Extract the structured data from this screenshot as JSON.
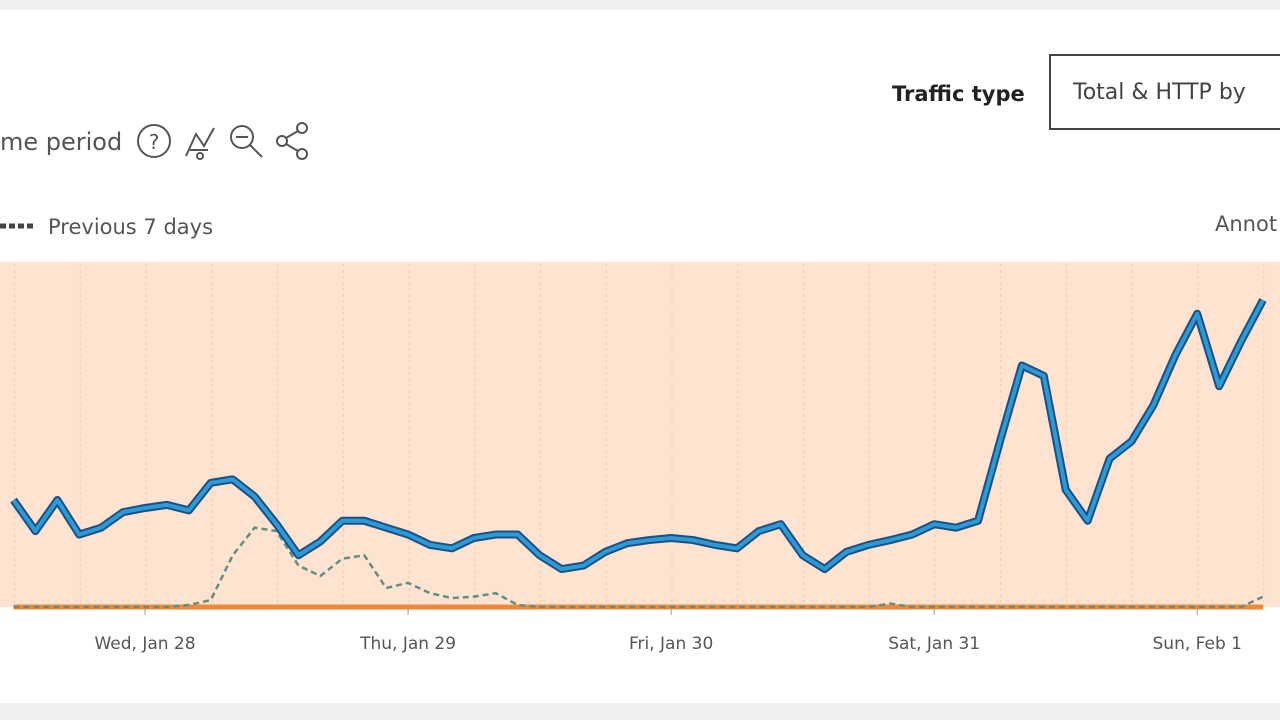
{
  "header": {
    "period_text": "me period"
  },
  "filter": {
    "label": "Traffic type",
    "value": "Total & HTTP by"
  },
  "annotations_link": "Annot",
  "chart_data": {
    "type": "line",
    "categories": [
      null,
      null,
      null,
      null,
      null,
      null,
      "Wed, Jan 28",
      null,
      null,
      null,
      null,
      null,
      null,
      null,
      null,
      null,
      null,
      null,
      "Thu, Jan 29",
      null,
      null,
      null,
      null,
      null,
      null,
      null,
      null,
      null,
      null,
      null,
      "Fri, Jan 30",
      null,
      null,
      null,
      null,
      null,
      null,
      null,
      null,
      null,
      null,
      null,
      "Sat, Jan 31",
      null,
      null,
      null,
      null,
      null,
      null,
      null,
      null,
      null,
      null,
      null,
      "Sun, Feb 1",
      null,
      null,
      null
    ],
    "ylim": [
      0,
      100
    ],
    "series": [
      {
        "color": "#2b9bd6",
        "values": [
          31,
          22,
          31,
          21,
          23,
          27.5,
          28.7,
          29.6,
          28,
          36,
          37,
          32,
          24,
          15,
          19,
          25,
          25,
          23,
          21,
          18,
          17,
          20,
          21,
          21,
          15,
          11,
          12,
          16,
          18.5,
          19.4,
          20,
          19.4,
          18,
          17,
          22,
          24,
          15,
          11,
          16,
          18,
          19.4,
          21,
          24,
          23,
          25,
          48,
          70,
          67,
          34,
          25,
          43,
          48,
          58.5,
          73,
          85,
          64,
          77,
          89
        ]
      },
      {
        "name": "Previous 7 days",
        "color": "#5f8f80",
        "values": [
          0,
          0,
          0,
          0,
          0,
          0,
          0,
          0,
          0.6,
          2,
          15,
          23,
          22,
          12,
          9,
          14,
          15,
          5.5,
          7,
          4,
          2.6,
          3,
          4,
          0.6,
          0,
          0,
          0,
          0,
          0,
          0,
          0,
          0,
          0,
          0,
          0,
          0,
          0,
          0,
          0,
          0,
          1,
          0,
          0,
          0,
          0,
          0,
          0,
          0,
          0,
          0,
          0,
          0,
          0,
          0,
          0,
          0,
          0,
          3
        ]
      },
      {
        "color": "#f0883a",
        "values": [
          0,
          0,
          0,
          0,
          0,
          0,
          0,
          0,
          0,
          0,
          0,
          0,
          0,
          0,
          0,
          0,
          0,
          0,
          0,
          0,
          0,
          0,
          0,
          0,
          0,
          0,
          0,
          0,
          0,
          0,
          0,
          0,
          0,
          0,
          0,
          0,
          0,
          0,
          0,
          0,
          0,
          0,
          0,
          0,
          0,
          0,
          0,
          0,
          0,
          0,
          0,
          0,
          0,
          0,
          0,
          0,
          0,
          0
        ]
      }
    ]
  }
}
